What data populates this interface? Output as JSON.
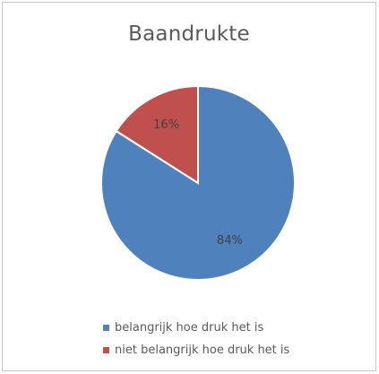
{
  "chart_data": {
    "type": "pie",
    "title": "Baandrukte",
    "slices": [
      {
        "name": "belangrijk hoe druk het is",
        "value": 84,
        "label": "84%",
        "color": "#4f81bd"
      },
      {
        "name": "niet belangrijk hoe druk het is",
        "value": 16,
        "label": "16%",
        "color": "#c0504d"
      }
    ],
    "legend": "bottom",
    "start_angle_deg": 0,
    "direction": "clockwise"
  }
}
